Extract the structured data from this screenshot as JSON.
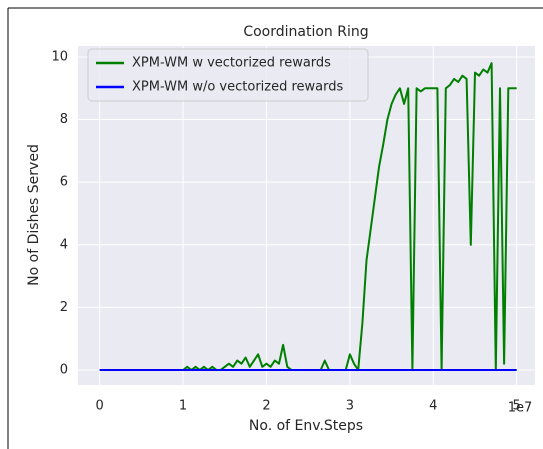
{
  "chart_data": {
    "type": "line",
    "title": "Coordination Ring",
    "xlabel": "No. of Env.Steps",
    "ylabel": "No of Dishes Served",
    "x_offset_label": "1e7",
    "x": [
      0,
      0.05,
      0.1,
      0.15,
      0.2,
      0.25,
      0.3,
      0.35,
      0.4,
      0.45,
      0.5,
      0.55,
      0.6,
      0.65,
      0.7,
      0.75,
      0.8,
      0.85,
      0.9,
      0.95,
      1,
      1.05,
      1.1,
      1.15,
      1.2,
      1.25,
      1.3,
      1.35,
      1.4,
      1.45,
      1.5,
      1.55,
      1.6,
      1.65,
      1.7,
      1.75,
      1.8,
      1.85,
      1.9,
      1.95,
      2,
      2.05,
      2.1,
      2.15,
      2.2,
      2.25,
      2.3,
      2.35,
      2.4,
      2.45,
      2.5,
      2.55,
      2.6,
      2.65,
      2.7,
      2.75,
      2.8,
      2.85,
      2.9,
      2.95,
      3,
      3.05,
      3.1,
      3.15,
      3.2,
      3.25,
      3.3,
      3.35,
      3.4,
      3.45,
      3.5,
      3.55,
      3.6,
      3.65,
      3.7,
      3.75,
      3.8,
      3.85,
      3.9,
      3.95,
      4,
      4.05,
      4.1,
      4.15,
      4.2,
      4.25,
      4.3,
      4.35,
      4.4,
      4.45,
      4.5,
      4.55,
      4.6,
      4.65,
      4.7,
      4.75,
      4.8,
      4.85,
      4.9,
      4.95,
      5
    ],
    "series": [
      {
        "name": "XPM-WM w vectorized rewards",
        "color": "#007f00",
        "values": [
          0,
          0,
          0,
          0,
          0,
          0,
          0,
          0,
          0,
          0,
          0,
          0,
          0,
          0,
          0,
          0,
          0,
          0,
          0,
          0,
          0,
          0.1,
          0,
          0.1,
          0,
          0.1,
          0,
          0.1,
          0,
          0,
          0.1,
          0.2,
          0.1,
          0.3,
          0.2,
          0.4,
          0.1,
          0.3,
          0.5,
          0.1,
          0.2,
          0.1,
          0.3,
          0.2,
          0.8,
          0.1,
          0,
          0,
          0,
          0,
          0,
          0,
          0,
          0,
          0.3,
          0,
          0,
          0,
          0,
          0,
          0.5,
          0.2,
          0,
          1.5,
          3.5,
          4.5,
          5.5,
          6.5,
          7.2,
          8,
          8.5,
          8.8,
          9,
          8.5,
          9,
          0,
          9,
          8.9,
          9,
          9,
          9,
          9,
          0,
          9,
          9.1,
          9.3,
          9.2,
          9.4,
          9.3,
          4,
          9.5,
          9.4,
          9.6,
          9.5,
          9.8,
          0,
          9,
          0.2,
          9,
          9,
          9
        ]
      },
      {
        "name": "XPM-WM w/o vectorized rewards",
        "color": "#0000ff",
        "values": [
          0,
          0,
          0,
          0,
          0,
          0,
          0,
          0,
          0,
          0,
          0,
          0,
          0,
          0,
          0,
          0,
          0,
          0,
          0,
          0,
          0,
          0,
          0,
          0,
          0,
          0,
          0,
          0,
          0,
          0,
          0,
          0,
          0,
          0,
          0,
          0,
          0,
          0,
          0,
          0,
          0,
          0,
          0,
          0,
          0,
          0,
          0,
          0,
          0,
          0,
          0,
          0,
          0,
          0,
          0,
          0,
          0,
          0,
          0,
          0,
          0,
          0,
          0,
          0,
          0,
          0,
          0,
          0,
          0,
          0,
          0,
          0,
          0,
          0,
          0,
          0,
          0,
          0,
          0,
          0,
          0,
          0,
          0,
          0,
          0,
          0,
          0,
          0,
          0,
          0,
          0,
          0,
          0,
          0,
          0,
          0,
          0,
          0,
          0,
          0,
          0
        ]
      }
    ],
    "xlim": [
      -0.26,
      5.22
    ],
    "xticks": [
      0,
      1,
      2,
      3,
      4,
      5
    ],
    "ylim": [
      -0.48,
      10.35
    ],
    "yticks": [
      0,
      2,
      4,
      6,
      8,
      10
    ],
    "grid": true,
    "legend": "upper left"
  }
}
